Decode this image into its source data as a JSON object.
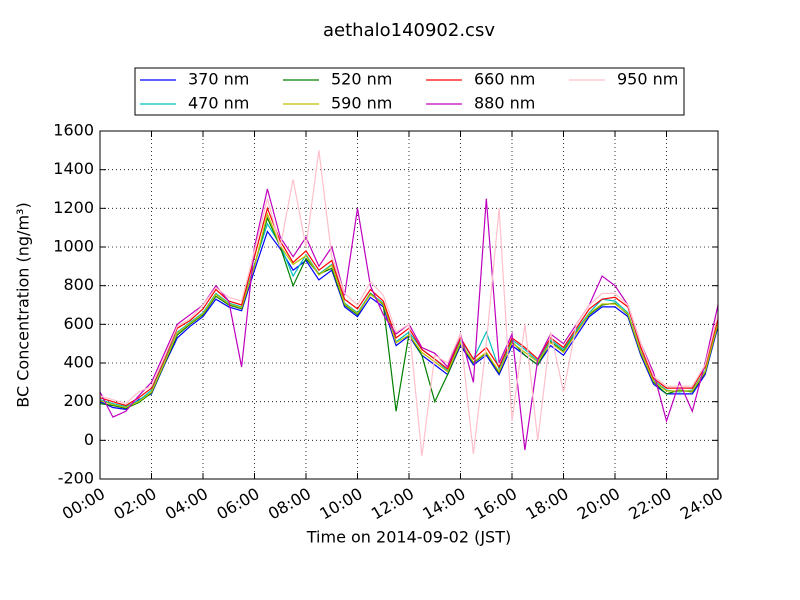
{
  "chart_data": {
    "type": "line",
    "title": "aethalo140902.csv",
    "x_label": "Time on 2014-09-02 (JST)",
    "y_label": "BC Concentration (ng/m³)",
    "x": [
      0,
      0.5,
      1,
      1.5,
      2,
      2.5,
      3,
      3.5,
      4,
      4.5,
      5,
      5.5,
      6,
      6.5,
      7,
      7.5,
      8,
      8.5,
      9,
      9.5,
      10,
      10.5,
      11,
      11.5,
      12,
      12.5,
      13,
      13.5,
      14,
      14.5,
      15,
      15.5,
      16,
      16.5,
      17,
      17.5,
      18,
      18.5,
      19,
      19.5,
      20,
      20.5,
      21,
      21.5,
      22,
      22.5,
      23,
      23.5,
      24
    ],
    "xlim": [
      0,
      24
    ],
    "xticks": [
      {
        "value": 0,
        "label": "00:00"
      },
      {
        "value": 2,
        "label": "02:00"
      },
      {
        "value": 4,
        "label": "04:00"
      },
      {
        "value": 6,
        "label": "06:00"
      },
      {
        "value": 8,
        "label": "08:00"
      },
      {
        "value": 10,
        "label": "10:00"
      },
      {
        "value": 12,
        "label": "12:00"
      },
      {
        "value": 14,
        "label": "14:00"
      },
      {
        "value": 16,
        "label": "16:00"
      },
      {
        "value": 18,
        "label": "18:00"
      },
      {
        "value": 20,
        "label": "20:00"
      },
      {
        "value": 22,
        "label": "22:00"
      },
      {
        "value": 24,
        "label": "24:00"
      }
    ],
    "ylim": [
      -200,
      1600
    ],
    "yticks": [
      -200,
      0,
      200,
      400,
      600,
      800,
      1000,
      1200,
      1400,
      1600
    ],
    "grid": true,
    "series": [
      {
        "name": "370 nm",
        "color": "#0000ff",
        "values": [
          200,
          170,
          160,
          210,
          240,
          390,
          530,
          590,
          640,
          730,
          690,
          670,
          880,
          1080,
          990,
          880,
          930,
          830,
          880,
          690,
          640,
          740,
          690,
          490,
          540,
          440,
          390,
          340,
          490,
          390,
          440,
          340,
          490,
          440,
          390,
          490,
          440,
          540,
          640,
          690,
          690,
          640,
          440,
          290,
          240,
          240,
          240,
          340,
          590
        ]
      },
      {
        "name": "470 nm",
        "color": "#00bfbf",
        "values": [
          210,
          190,
          175,
          205,
          260,
          410,
          560,
          610,
          660,
          760,
          710,
          690,
          910,
          1120,
          1010,
          850,
          960,
          860,
          910,
          710,
          660,
          760,
          710,
          510,
          560,
          470,
          420,
          360,
          520,
          420,
          560,
          370,
          520,
          470,
          410,
          520,
          470,
          570,
          660,
          730,
          720,
          660,
          460,
          310,
          260,
          250,
          260,
          360,
          610
        ]
      },
      {
        "name": "520 nm",
        "color": "#008000",
        "values": [
          190,
          180,
          165,
          195,
          245,
          395,
          545,
          600,
          650,
          745,
          700,
          680,
          905,
          1150,
          1000,
          800,
          940,
          860,
          890,
          700,
          650,
          760,
          700,
          150,
          550,
          440,
          200,
          340,
          500,
          400,
          450,
          350,
          510,
          440,
          390,
          510,
          460,
          560,
          650,
          700,
          710,
          650,
          450,
          300,
          240,
          260,
          250,
          350,
          600
        ]
      },
      {
        "name": "590 nm",
        "color": "#bfbf00",
        "values": [
          205,
          185,
          170,
          200,
          250,
          400,
          555,
          605,
          655,
          755,
          705,
          685,
          900,
          1170,
          1005,
          910,
          955,
          855,
          905,
          705,
          655,
          755,
          705,
          505,
          545,
          455,
          405,
          355,
          505,
          405,
          455,
          355,
          505,
          455,
          405,
          505,
          455,
          555,
          655,
          705,
          705,
          655,
          455,
          305,
          255,
          255,
          255,
          355,
          605
        ]
      },
      {
        "name": "660 nm",
        "color": "#ff0000",
        "values": [
          220,
          200,
          180,
          220,
          270,
          420,
          580,
          620,
          680,
          780,
          720,
          700,
          950,
          1200,
          1030,
          920,
          980,
          880,
          930,
          730,
          680,
          780,
          720,
          530,
          580,
          470,
          420,
          370,
          530,
          420,
          480,
          380,
          530,
          480,
          420,
          530,
          480,
          580,
          680,
          730,
          740,
          690,
          480,
          320,
          270,
          270,
          270,
          380,
          630
        ]
      },
      {
        "name": "880 nm",
        "color": "#bf00bf",
        "values": [
          250,
          120,
          150,
          230,
          300,
          450,
          600,
          650,
          700,
          800,
          720,
          380,
          1000,
          1300,
          1050,
          950,
          1050,
          900,
          1000,
          750,
          1200,
          800,
          650,
          550,
          600,
          480,
          450,
          380,
          550,
          300,
          1250,
          400,
          550,
          -50,
          420,
          550,
          500,
          600,
          700,
          850,
          800,
          700,
          500,
          350,
          100,
          300,
          150,
          400,
          700
        ]
      },
      {
        "name": "950 nm",
        "color": "#ffc0cb",
        "values": [
          230,
          210,
          190,
          250,
          280,
          430,
          590,
          630,
          700,
          790,
          740,
          720,
          980,
          1250,
          1000,
          1350,
          1000,
          1500,
          950,
          760,
          700,
          820,
          750,
          560,
          600,
          -80,
          440,
          400,
          550,
          -70,
          500,
          1200,
          100,
          600,
          0,
          560,
          250,
          600,
          700,
          760,
          760,
          700,
          500,
          330,
          280,
          280,
          280,
          390,
          650
        ]
      }
    ]
  }
}
